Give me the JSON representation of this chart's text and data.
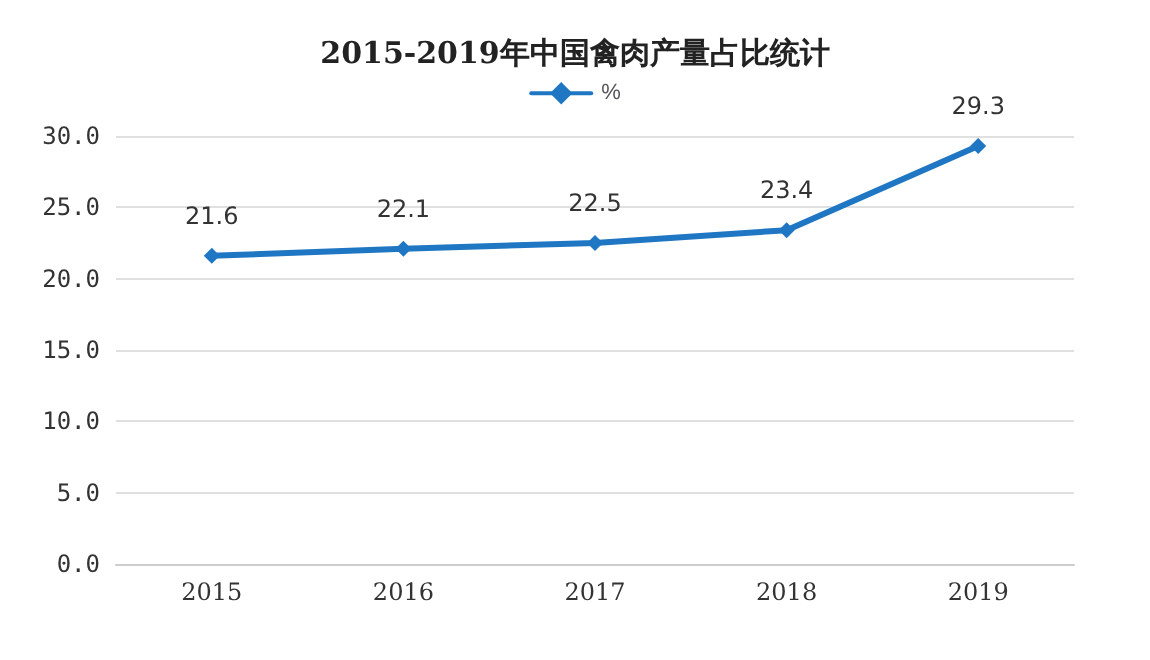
{
  "chart_data": {
    "type": "line",
    "title": "2015-2019年中国禽肉产量占比统计",
    "categories": [
      "2015",
      "2016",
      "2017",
      "2018",
      "2019"
    ],
    "series": [
      {
        "name": "%",
        "color": "#1f77c4",
        "values": [
          21.6,
          22.1,
          22.5,
          23.4,
          29.3
        ]
      }
    ],
    "ylim": [
      0,
      30
    ],
    "yticks": [
      {
        "value": 0,
        "label": "0.0"
      },
      {
        "value": 5,
        "label": "5.0"
      },
      {
        "value": 10,
        "label": "10.0"
      },
      {
        "value": 15,
        "label": "15.0"
      },
      {
        "value": 20,
        "label": "20.0"
      },
      {
        "value": 25,
        "label": "25.0"
      },
      {
        "value": 30,
        "label": "30.0"
      }
    ],
    "grid": "y",
    "legend": "top",
    "marker": "diamond",
    "line_style": "solid",
    "data_labels": true
  }
}
